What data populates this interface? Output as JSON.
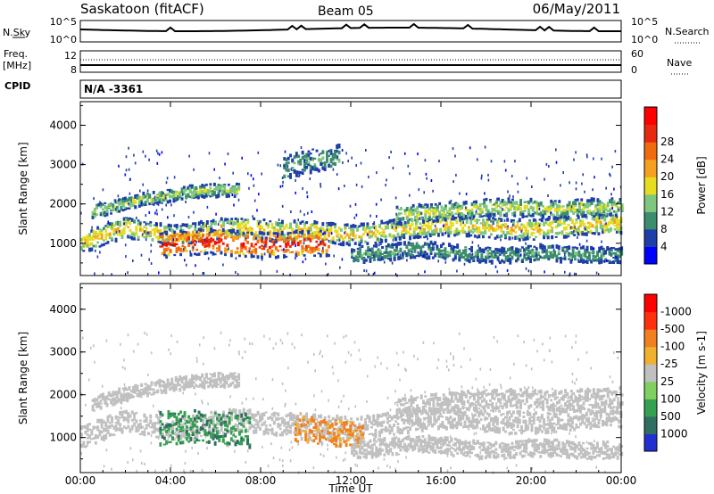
{
  "header": {
    "station": "Saskatoon (fitACF)",
    "beam": "Beam 05",
    "date": "06/May/2011"
  },
  "strip_panels": {
    "nsky_label": "N.Sky",
    "nsearch_label": "N.Search",
    "nsky_ticks": [
      "10^5",
      "10^0"
    ],
    "nsearch_ticks": [
      "10^5",
      "10^0"
    ],
    "freq_label": "Freq.",
    "freq_unit": "[MHz]",
    "freq_ticks": [
      "12",
      "8"
    ],
    "nave_label": "Nave",
    "nave_ticks": [
      "60",
      "0"
    ],
    "cpid_label": "CPID",
    "cpid_value": "N/A -3361"
  },
  "chart_data": [
    {
      "type": "heatmap",
      "panel": "power",
      "title": "",
      "xlabel": "Time UT",
      "ylabel": "Slant Range [km]",
      "xlim": [
        "00:00",
        "24:00"
      ],
      "ylim": [
        180,
        4600
      ],
      "x_tick_labels": [
        "00:00",
        "04:00",
        "08:00",
        "12:00",
        "16:00",
        "20:00",
        "00:00"
      ],
      "y_tick_labels": [
        "1000",
        "2000",
        "3000",
        "4000"
      ],
      "colorbar": {
        "label": "Power [dB]",
        "tick_labels": [
          "4",
          "8",
          "12",
          "16",
          "20",
          "24",
          "28"
        ],
        "colors": [
          "#0000ff",
          "#1e3ea8",
          "#3c8c6e",
          "#7fc67f",
          "#e6dd20",
          "#f5a020",
          "#f06a10",
          "#e52a10",
          "#ff0000"
        ]
      },
      "bands": [
        {
          "t0": 0.0,
          "t1": 24.0,
          "r": [
            1000,
            1200,
            1400,
            1300,
            1200,
            1250,
            1350,
            1400,
            1350,
            1300,
            1300,
            1250,
            1200,
            1250,
            1350,
            1400,
            1450,
            1450,
            1400,
            1350,
            1350,
            1400,
            1450,
            1500,
            1500
          ],
          "width": 260,
          "level": 16
        },
        {
          "t0": 0.5,
          "t1": 7.0,
          "r": [
            1800,
            1950,
            2100,
            2200,
            2300,
            2350,
            2350
          ],
          "width": 160,
          "level": 12
        },
        {
          "t0": 3.5,
          "t1": 11.0,
          "r": [
            950,
            1000,
            1050,
            1000,
            950,
            950,
            1000,
            1000
          ],
          "width": 320,
          "level": 26
        },
        {
          "t0": 9.0,
          "t1": 11.5,
          "r": [
            2900,
            3100,
            3200
          ],
          "width": 300,
          "level": 8
        },
        {
          "t0": 12.0,
          "t1": 24.0,
          "r": [
            700,
            750,
            800,
            850,
            800,
            750,
            700,
            700,
            750,
            750,
            700,
            700,
            700
          ],
          "width": 200,
          "level": 8
        },
        {
          "t0": 14.0,
          "t1": 24.0,
          "r": [
            1700,
            1750,
            1800,
            1850,
            1900,
            1900,
            1900,
            1850,
            1900,
            1900,
            1950
          ],
          "width": 220,
          "level": 13
        }
      ]
    },
    {
      "type": "heatmap",
      "panel": "velocity",
      "title": "",
      "xlabel": "Time UT",
      "ylabel": "Slant Range [km]",
      "xlim": [
        "00:00",
        "24:00"
      ],
      "ylim": [
        180,
        4600
      ],
      "x_tick_labels": [
        "00:00",
        "04:00",
        "08:00",
        "12:00",
        "16:00",
        "20:00",
        "00:00"
      ],
      "y_tick_labels": [
        "1000",
        "2000",
        "3000",
        "4000"
      ],
      "colorbar": {
        "label": "Velocity [m s-1]",
        "tick_labels": [
          "1000",
          "500",
          "100",
          "25",
          "-25",
          "-100",
          "-500",
          "-1000"
        ],
        "colors": [
          "#2230d0",
          "#2f6e60",
          "#35a050",
          "#7fd060",
          "#c0c0c0",
          "#f0b030",
          "#f08020",
          "#ff3010",
          "#ff0000"
        ]
      },
      "bands": [
        {
          "t0": 0.0,
          "t1": 24.0,
          "r": [
            1000,
            1200,
            1400,
            1300,
            1200,
            1250,
            1350,
            1400,
            1350,
            1300,
            1300,
            1250,
            1200,
            1250,
            1350,
            1400,
            1450,
            1450,
            1400,
            1350,
            1350,
            1400,
            1450,
            1500,
            1500
          ],
          "width": 260,
          "level": 0
        },
        {
          "t0": 0.5,
          "t1": 7.0,
          "r": [
            1800,
            1950,
            2100,
            2200,
            2300,
            2350,
            2350
          ],
          "width": 160,
          "level": 0
        },
        {
          "t0": 3.5,
          "t1": 7.5,
          "r": [
            1200,
            1250,
            1250,
            1200,
            1150
          ],
          "width": 380,
          "level": 250
        },
        {
          "t0": 9.5,
          "t1": 12.5,
          "r": [
            1200,
            1150,
            1100,
            1050
          ],
          "width": 300,
          "level": -150
        },
        {
          "t0": 12.0,
          "t1": 24.0,
          "r": [
            700,
            750,
            800,
            850,
            800,
            750,
            700,
            700,
            750,
            750,
            700,
            700,
            700
          ],
          "width": 200,
          "level": 0
        },
        {
          "t0": 14.0,
          "t1": 24.0,
          "r": [
            1700,
            1750,
            1800,
            1850,
            1900,
            1900,
            1900,
            1850,
            1900,
            1900,
            1950
          ],
          "width": 220,
          "level": 0
        }
      ]
    }
  ]
}
